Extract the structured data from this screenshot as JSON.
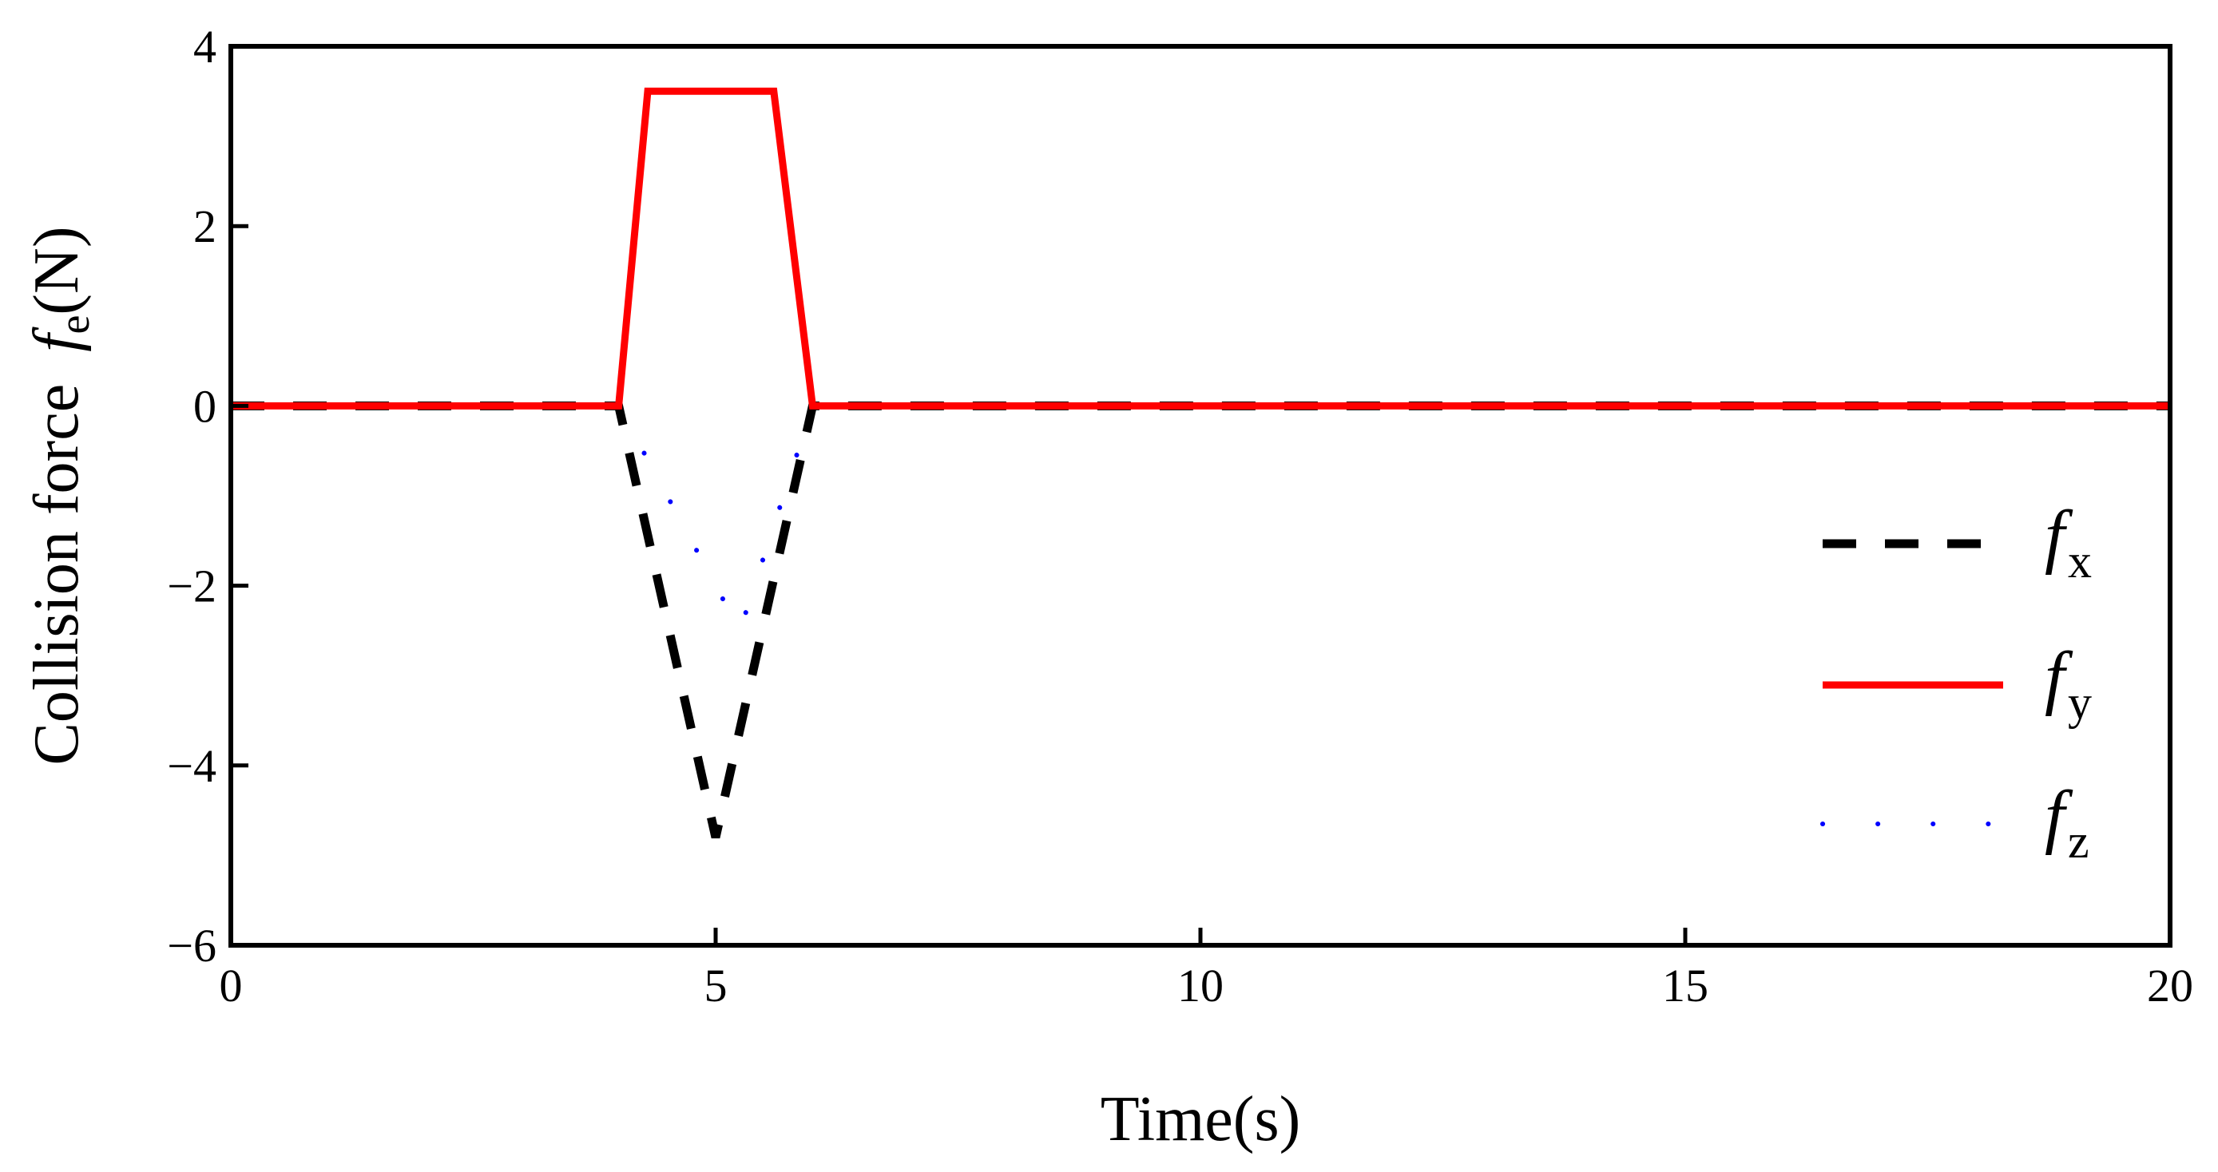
{
  "chart_data": {
    "type": "line",
    "xlabel": "Time(s)",
    "ylabel": {
      "prefix": "Collision force",
      "symbol": "f",
      "subscript": "e",
      "unit": "(N)"
    },
    "xlim": [
      0,
      20
    ],
    "ylim": [
      -6,
      4
    ],
    "xticks": [
      0,
      5,
      10,
      15,
      20
    ],
    "yticks": [
      4,
      2,
      0,
      -2,
      -4,
      -6
    ],
    "xtick_labels": [
      "0",
      "5",
      "10",
      "15",
      "20"
    ],
    "ytick_labels": [
      "4",
      "2",
      "0",
      "−2",
      "−4",
      "−6"
    ],
    "grid": false,
    "legend_position": "right",
    "series": [
      {
        "name": "x",
        "style": "dashed",
        "color": "#000000",
        "x": [
          0,
          4,
          5,
          6,
          20
        ],
        "y": [
          0,
          0,
          -4.8,
          0,
          0
        ]
      },
      {
        "name": "y",
        "style": "solid",
        "color": "#ff0000",
        "x": [
          0,
          4,
          4.3,
          5.6,
          6,
          20
        ],
        "y": [
          0,
          0,
          3.5,
          3.5,
          0,
          0
        ]
      },
      {
        "name": "z",
        "style": "dotted",
        "color": "#0000ff",
        "x": [
          0,
          4,
          5.25,
          6,
          20
        ],
        "y": [
          0,
          0,
          -2.5,
          0,
          0
        ]
      }
    ],
    "legend": [
      {
        "symbol": "f",
        "subscript": "x"
      },
      {
        "symbol": "f",
        "subscript": "y"
      },
      {
        "symbol": "f",
        "subscript": "z"
      }
    ]
  }
}
